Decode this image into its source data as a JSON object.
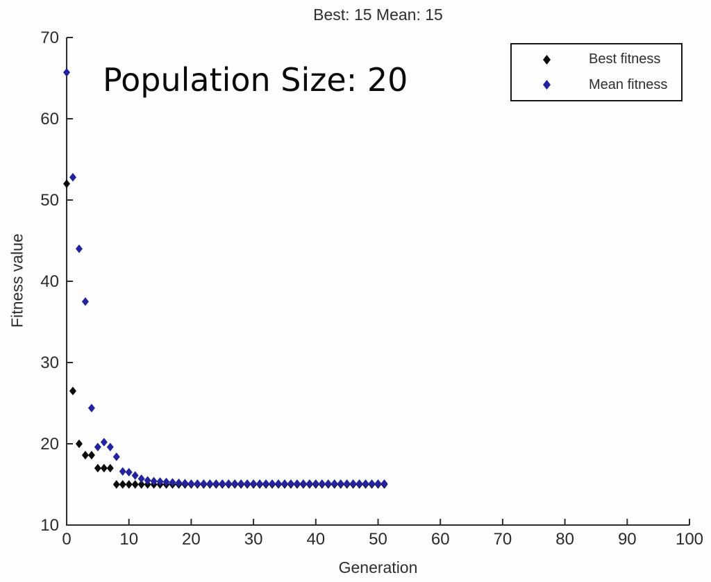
{
  "figure": {
    "title": "Best: 15 Mean: 15",
    "annotation": "Population Size: 20",
    "xlabel": "Generation",
    "ylabel": "Fitness value"
  },
  "legend": {
    "position": "upper right",
    "items": [
      {
        "label": "Best fitness",
        "marker": "diamond",
        "color": "#0a0a0a"
      },
      {
        "label": "Mean fitness",
        "marker": "diamond",
        "color": "#2323A0"
      }
    ]
  },
  "colors": {
    "axis": "#2b2b2b",
    "text": "#2e2e2e",
    "best_series": "#0a0a0a",
    "mean_series": "#2323A0",
    "background": "#fdfdfd"
  },
  "chart_data": {
    "type": "scatter",
    "title": "Best: 15 Mean: 15",
    "xlabel": "Generation",
    "ylabel": "Fitness value",
    "xlim": [
      0,
      100
    ],
    "ylim": [
      10,
      70
    ],
    "x_ticks": [
      0,
      10,
      20,
      30,
      40,
      50,
      60,
      70,
      80,
      90,
      100
    ],
    "y_ticks": [
      10,
      20,
      30,
      40,
      50,
      60,
      70
    ],
    "grid": false,
    "legend_position": "upper right",
    "marker": "diamond",
    "x": [
      0,
      1,
      2,
      3,
      4,
      5,
      6,
      7,
      8,
      9,
      10,
      11,
      12,
      13,
      14,
      15,
      16,
      17,
      18,
      19,
      20,
      21,
      22,
      23,
      24,
      25,
      26,
      27,
      28,
      29,
      30,
      31,
      32,
      33,
      34,
      35,
      36,
      37,
      38,
      39,
      40,
      41,
      42,
      43,
      44,
      45,
      46,
      47,
      48,
      49,
      50,
      51
    ],
    "series": [
      {
        "name": "Best fitness",
        "color": "#0a0a0a",
        "values": [
          52,
          26.5,
          20,
          18.6,
          18.6,
          17,
          17,
          17,
          15,
          15,
          15,
          15,
          15,
          15,
          15,
          15,
          15,
          15,
          15,
          15,
          15,
          15,
          15,
          15,
          15,
          15,
          15,
          15,
          15,
          15,
          15,
          15,
          15,
          15,
          15,
          15,
          15,
          15,
          15,
          15,
          15,
          15,
          15,
          15,
          15,
          15,
          15,
          15,
          15,
          15,
          15,
          15
        ]
      },
      {
        "name": "Mean fitness",
        "color": "#2323A0",
        "values": [
          65.7,
          52.8,
          44,
          37.5,
          24.4,
          19.6,
          20.2,
          19.6,
          18.4,
          16.6,
          16.5,
          16.1,
          15.7,
          15.5,
          15.4,
          15.35,
          15.3,
          15.25,
          15.2,
          15.15,
          15.1,
          15.1,
          15.1,
          15.1,
          15.1,
          15.1,
          15.1,
          15.1,
          15.1,
          15.1,
          15.1,
          15.1,
          15.1,
          15.1,
          15.1,
          15.1,
          15.1,
          15.1,
          15.1,
          15.1,
          15.1,
          15.1,
          15.1,
          15.1,
          15.1,
          15.1,
          15.1,
          15.1,
          15.1,
          15.1,
          15.1,
          15.1
        ]
      }
    ]
  }
}
